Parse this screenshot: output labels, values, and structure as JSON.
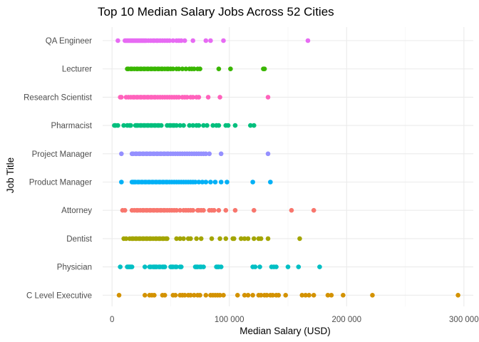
{
  "chart_data": {
    "type": "scatter",
    "title": "Top 10 Median Salary Jobs Across 52 Cities",
    "xlabel": "Median Salary (USD)",
    "ylabel": "Job Title",
    "xlim": [
      -8000,
      308000
    ],
    "x_ticks": [
      0,
      100000,
      200000,
      300000
    ],
    "x_tick_labels": [
      "0",
      "100 000",
      "200 000",
      "300 000"
    ],
    "grid": true,
    "legend": "none",
    "categories": [
      "QA Engineer",
      "Lecturer",
      "Research Scientist",
      "Pharmacist",
      "Project Manager",
      "Product Manager",
      "Attorney",
      "Dentist",
      "Physician",
      "C Level Executive"
    ],
    "series": [
      {
        "category": "QA Engineer",
        "color": "#E76BF3",
        "values": [
          5000,
          11000,
          12000,
          13000,
          14000,
          15000,
          16000,
          17000,
          18000,
          19000,
          20000,
          21000,
          22000,
          23000,
          24000,
          25000,
          26000,
          27000,
          28000,
          29000,
          31000,
          33000,
          35000,
          36000,
          38000,
          39000,
          41000,
          43000,
          45000,
          47000,
          49000,
          52000,
          55000,
          57000,
          59000,
          62000,
          69000,
          80000,
          84000,
          95000,
          167000
        ]
      },
      {
        "category": "Lecturer",
        "color": "#39B600",
        "values": [
          13000,
          14000,
          16000,
          17000,
          19000,
          21000,
          22000,
          24000,
          25000,
          27000,
          28000,
          30000,
          31000,
          33000,
          34000,
          36000,
          37000,
          39000,
          40000,
          42000,
          43000,
          45000,
          47000,
          48000,
          50000,
          52000,
          55000,
          57000,
          60000,
          63000,
          66000,
          68000,
          70000,
          73000,
          75000,
          91000,
          101000,
          129000,
          130000
        ]
      },
      {
        "category": "Research Scientist",
        "color": "#FF62BC",
        "values": [
          7000,
          8000,
          12000,
          14000,
          16000,
          18000,
          19000,
          21000,
          22000,
          24000,
          25000,
          27000,
          28000,
          30000,
          31000,
          33000,
          34000,
          36000,
          37000,
          39000,
          41000,
          43000,
          45000,
          47000,
          49000,
          51000,
          53000,
          55000,
          57000,
          60000,
          62000,
          64000,
          67000,
          69000,
          72000,
          74000,
          82000,
          92000,
          133000
        ]
      },
      {
        "category": "Pharmacist",
        "color": "#00BF7D",
        "values": [
          2000,
          3000,
          5000,
          10000,
          13000,
          15000,
          16000,
          20000,
          21000,
          22000,
          24000,
          25000,
          27000,
          28000,
          30000,
          31000,
          33000,
          34000,
          36000,
          37000,
          39000,
          40000,
          42000,
          47000,
          49000,
          50000,
          52000,
          53000,
          55000,
          58000,
          61000,
          66000,
          69000,
          72000,
          74000,
          78000,
          81000,
          86000,
          89000,
          91000,
          97000,
          99000,
          105000,
          118000,
          121000
        ]
      },
      {
        "category": "Project Manager",
        "color": "#9590FF",
        "values": [
          8000,
          17000,
          18000,
          20000,
          21000,
          23000,
          24000,
          26000,
          27000,
          29000,
          30000,
          32000,
          33000,
          35000,
          36000,
          38000,
          39000,
          41000,
          42000,
          44000,
          45000,
          47000,
          48000,
          50000,
          52000,
          54000,
          56000,
          58000,
          60000,
          62000,
          64000,
          66000,
          68000,
          70000,
          72000,
          74000,
          76000,
          78000,
          80000,
          83000,
          93000,
          133000
        ]
      },
      {
        "category": "Product Manager",
        "color": "#00B0F6",
        "values": [
          8000,
          17000,
          18000,
          19000,
          20000,
          22000,
          23000,
          25000,
          26000,
          28000,
          29000,
          31000,
          32000,
          34000,
          35000,
          37000,
          38000,
          40000,
          41000,
          43000,
          44000,
          46000,
          47000,
          49000,
          51000,
          53000,
          55000,
          57000,
          59000,
          61000,
          63000,
          65000,
          67000,
          69000,
          71000,
          74000,
          77000,
          80000,
          84000,
          88000,
          93000,
          98000,
          120000,
          135000
        ]
      },
      {
        "category": "Attorney",
        "color": "#F8766D",
        "values": [
          9000,
          11000,
          17000,
          19000,
          21000,
          22000,
          24000,
          26000,
          27000,
          29000,
          30000,
          32000,
          33000,
          35000,
          36000,
          38000,
          39000,
          41000,
          42000,
          44000,
          45000,
          47000,
          49000,
          51000,
          53000,
          55000,
          58000,
          61000,
          63000,
          65000,
          67000,
          69000,
          73000,
          74000,
          76000,
          78000,
          83000,
          85000,
          87000,
          91000,
          97000,
          105000,
          121000,
          153000,
          172000
        ]
      },
      {
        "category": "Dentist",
        "color": "#A3A500",
        "values": [
          10000,
          12000,
          15000,
          17000,
          18000,
          20000,
          21000,
          23000,
          24000,
          26000,
          27000,
          29000,
          30000,
          32000,
          33000,
          35000,
          37000,
          38000,
          40000,
          41000,
          43000,
          44000,
          46000,
          47000,
          55000,
          58000,
          61000,
          65000,
          67000,
          72000,
          76000,
          85000,
          92000,
          97000,
          103000,
          104000,
          110000,
          113000,
          116000,
          121000,
          125000,
          127000,
          133000,
          160000
        ]
      },
      {
        "category": "Physician",
        "color": "#00BFC4",
        "values": [
          7000,
          13000,
          14000,
          15000,
          16000,
          17000,
          28000,
          32000,
          33000,
          35000,
          36000,
          37000,
          38000,
          40000,
          41000,
          43000,
          44000,
          45000,
          50000,
          51000,
          52000,
          54000,
          55000,
          58000,
          59000,
          71000,
          72000,
          73000,
          75000,
          76000,
          78000,
          89000,
          90000,
          91000,
          93000,
          120000,
          122000,
          126000,
          136000,
          138000,
          140000,
          150000,
          159000,
          177000
        ]
      },
      {
        "category": "C Level Executive",
        "color": "#D39200",
        "values": [
          6000,
          28000,
          32000,
          34000,
          36000,
          43000,
          45000,
          52000,
          54000,
          58000,
          60000,
          62000,
          65000,
          67000,
          70000,
          73000,
          75000,
          80000,
          84000,
          86000,
          88000,
          90000,
          92000,
          95000,
          107000,
          113000,
          116000,
          120000,
          125000,
          127000,
          130000,
          132000,
          135000,
          137000,
          140000,
          142000,
          148000,
          162000,
          165000,
          168000,
          172000,
          184000,
          187000,
          197000,
          222000,
          295000
        ]
      }
    ]
  }
}
